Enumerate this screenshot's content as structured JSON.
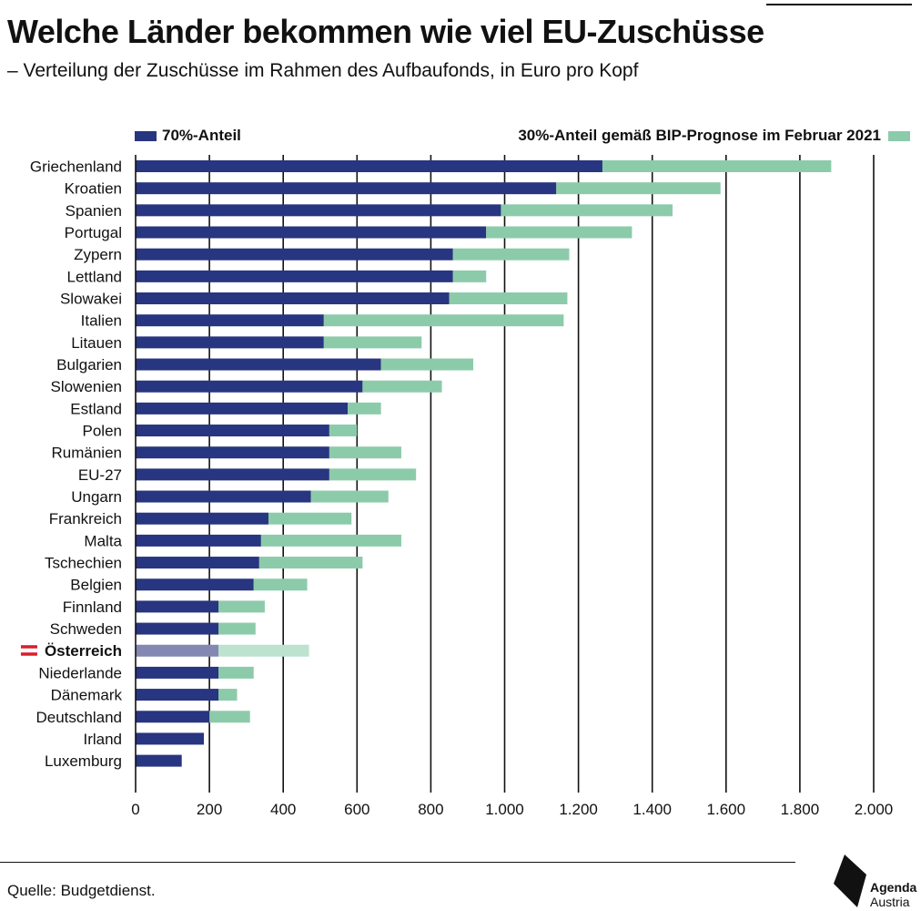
{
  "header": {
    "title": "Welche Länder bekommen wie viel EU-Zuschüsse",
    "subtitle": "– Verteilung der Zuschüsse im Rahmen des Aufbaufonds, in Euro pro Kopf"
  },
  "footer": {
    "source": "Quelle: Budgetdienst.",
    "logo_line1": "Agenda",
    "logo_line2": "Austria"
  },
  "colors": {
    "series_70": "#283580",
    "series_30": "#8ccbaa",
    "highlight_70": "#8288b2",
    "highlight_30": "#bde3d0",
    "flag_red": "#d81e2c"
  },
  "chart_data": {
    "type": "bar",
    "orientation": "horizontal",
    "stacked": true,
    "title": "Welche Länder bekommen wie viel EU-Zuschüsse",
    "xlabel": "",
    "ylabel": "",
    "xlim": [
      0,
      2000
    ],
    "xticks": [
      0,
      200,
      400,
      600,
      800,
      1000,
      1200,
      1400,
      1600,
      1800,
      2000
    ],
    "xtick_labels": [
      "0",
      "200",
      "400",
      "600",
      "800",
      "1.000",
      "1.200",
      "1.400",
      "1.600",
      "1.800",
      "2.000"
    ],
    "grid": "vertical",
    "legend_position": "top",
    "highlight_category": "Österreich",
    "categories": [
      "Griechenland",
      "Kroatien",
      "Spanien",
      "Portugal",
      "Zypern",
      "Lettland",
      "Slowakei",
      "Italien",
      "Litauen",
      "Bulgarien",
      "Slowenien",
      "Estland",
      "Polen",
      "Rumänien",
      "EU-27",
      "Ungarn",
      "Frankreich",
      "Malta",
      "Tschechien",
      "Belgien",
      "Finnland",
      "Schweden",
      "Österreich",
      "Niederlande",
      "Dänemark",
      "Deutschland",
      "Irland",
      "Luxemburg"
    ],
    "series": [
      {
        "name": "70%-Anteil",
        "values": [
          1265,
          1140,
          990,
          950,
          860,
          860,
          850,
          510,
          510,
          665,
          615,
          575,
          525,
          525,
          525,
          475,
          360,
          340,
          335,
          320,
          225,
          225,
          225,
          225,
          225,
          200,
          185,
          125
        ]
      },
      {
        "name": "30%-Anteil gemäß BIP-Prognose im Februar 2021",
        "values": [
          620,
          445,
          465,
          395,
          315,
          90,
          320,
          650,
          265,
          250,
          215,
          90,
          75,
          195,
          235,
          210,
          225,
          380,
          280,
          145,
          125,
          100,
          245,
          95,
          50,
          110,
          0,
          0
        ]
      }
    ]
  }
}
